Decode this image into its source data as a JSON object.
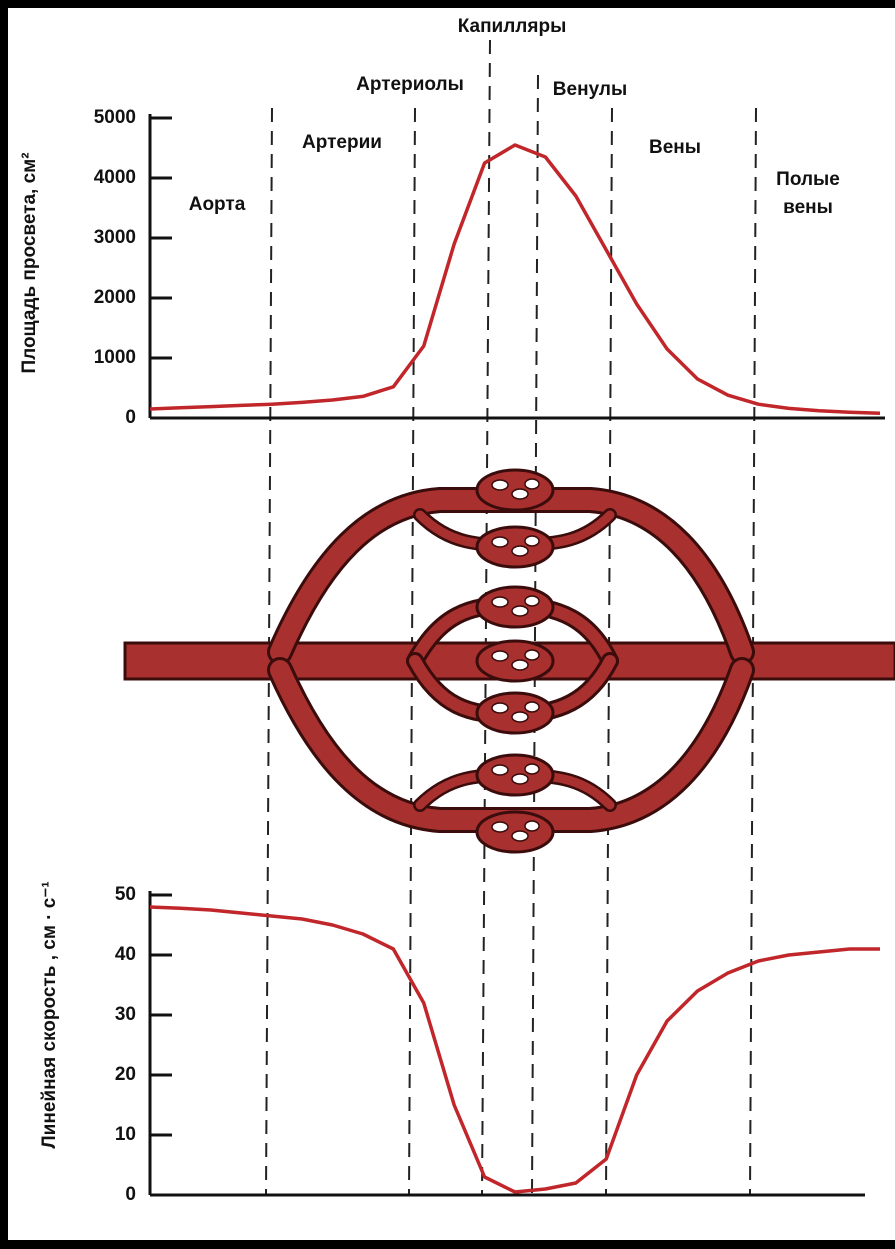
{
  "regions": [
    "Аорта",
    "Артерии",
    "Артериолы",
    "Капилляры",
    "Венулы",
    "Вены",
    "Полые вены"
  ],
  "chart_data": [
    {
      "type": "line",
      "ylabel": "Площадь просвета, см²",
      "categories": [
        null,
        null,
        null,
        null,
        null,
        null,
        null,
        null,
        null,
        null,
        null,
        null,
        null,
        null,
        null,
        null,
        null,
        null,
        null,
        null,
        null,
        null,
        null,
        null,
        null
      ],
      "series": [
        {
          "color": "#c0262a",
          "values": [
            150,
            170,
            190,
            210,
            230,
            260,
            300,
            360,
            520,
            1200,
            2900,
            4250,
            4550,
            4350,
            3700,
            2800,
            1900,
            1150,
            650,
            380,
            230,
            160,
            120,
            95,
            80
          ]
        }
      ],
      "ylim": [
        0,
        5000
      ],
      "yticks": [
        0,
        1000,
        2000,
        3000,
        4000,
        5000
      ],
      "grid": false
    },
    {
      "type": "line",
      "ylabel": "Линейная скорость , см · с⁻¹",
      "categories": [
        null,
        null,
        null,
        null,
        null,
        null,
        null,
        null,
        null,
        null,
        null,
        null,
        null,
        null,
        null,
        null,
        null,
        null,
        null,
        null,
        null,
        null,
        null,
        null,
        null
      ],
      "series": [
        {
          "color": "#c0262a",
          "values": [
            48,
            47.8,
            47.5,
            47,
            46.5,
            46,
            45,
            43.5,
            41,
            32,
            15,
            3,
            0.5,
            1,
            2,
            6,
            20,
            29,
            34,
            37,
            39,
            40,
            40.5,
            41,
            41
          ]
        }
      ],
      "ylim": [
        0,
        50
      ],
      "yticks": [
        0,
        10,
        20,
        30,
        40,
        50
      ],
      "grid": false
    }
  ]
}
